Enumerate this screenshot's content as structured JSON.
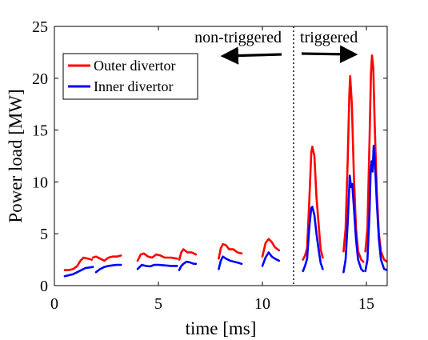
{
  "chart_data": {
    "type": "line",
    "xlabel": "time [ms]",
    "ylabel": "Power load [MW]",
    "xlim": [
      0,
      16
    ],
    "ylim": [
      0,
      25
    ],
    "xticks": [
      0,
      5,
      10,
      15
    ],
    "yticks": [
      0,
      5,
      10,
      15,
      20,
      25
    ],
    "grid": false,
    "legend_placement": "top-left",
    "annotations": {
      "left_label": "non-triggered",
      "right_label": "triggered",
      "separator_x": 11.5
    },
    "series": [
      {
        "name": "Outer divertor",
        "color": "#ff0000",
        "segments": [
          [
            [
              0.5,
              1.5
            ],
            [
              0.7,
              1.5
            ],
            [
              0.9,
              1.6
            ],
            [
              1.1,
              1.9
            ],
            [
              1.25,
              2.4
            ],
            [
              1.4,
              2.7
            ],
            [
              1.6,
              2.6
            ],
            [
              1.8,
              2.5
            ]
          ],
          [
            [
              1.85,
              2.7
            ],
            [
              2.0,
              2.8
            ],
            [
              2.2,
              2.6
            ],
            [
              2.4,
              2.4
            ],
            [
              2.6,
              2.7
            ],
            [
              2.8,
              2.8
            ],
            [
              3.0,
              2.8
            ],
            [
              3.2,
              2.9
            ]
          ],
          [
            [
              4.0,
              2.4
            ],
            [
              4.15,
              3.0
            ],
            [
              4.3,
              3.1
            ],
            [
              4.5,
              2.8
            ],
            [
              4.7,
              2.7
            ],
            [
              4.9,
              3.0
            ],
            [
              5.1,
              2.9
            ],
            [
              5.3,
              2.7
            ],
            [
              5.6,
              2.7
            ],
            [
              5.9,
              2.6
            ]
          ],
          [
            [
              6.0,
              2.5
            ],
            [
              6.1,
              3.2
            ],
            [
              6.2,
              3.5
            ],
            [
              6.4,
              3.2
            ],
            [
              6.6,
              3.2
            ],
            [
              6.8,
              3.0
            ]
          ],
          [
            [
              7.9,
              2.6
            ],
            [
              8.0,
              3.6
            ],
            [
              8.1,
              4.0
            ],
            [
              8.25,
              3.9
            ],
            [
              8.4,
              3.5
            ],
            [
              8.6,
              3.5
            ],
            [
              8.8,
              3.2
            ],
            [
              9.0,
              3.1
            ]
          ],
          [
            [
              10.0,
              2.8
            ],
            [
              10.15,
              4.1
            ],
            [
              10.3,
              4.5
            ],
            [
              10.45,
              4.2
            ],
            [
              10.6,
              3.7
            ],
            [
              10.8,
              3.4
            ]
          ],
          [
            [
              11.95,
              2.5
            ],
            [
              12.05,
              2.9
            ],
            [
              12.15,
              3.6
            ],
            [
              12.25,
              8.0
            ],
            [
              12.35,
              12.8
            ],
            [
              12.4,
              13.4
            ],
            [
              12.5,
              12.5
            ],
            [
              12.6,
              8.5
            ],
            [
              12.7,
              6.0
            ],
            [
              12.8,
              3.5
            ],
            [
              12.9,
              2.7
            ]
          ],
          [
            [
              13.9,
              3.3
            ],
            [
              14.0,
              5.5
            ],
            [
              14.1,
              12.0
            ],
            [
              14.18,
              18.5
            ],
            [
              14.22,
              20.2
            ],
            [
              14.3,
              17.5
            ],
            [
              14.4,
              10.5
            ],
            [
              14.5,
              5.5
            ],
            [
              14.6,
              3.3
            ],
            [
              14.75,
              2.5
            ],
            [
              14.85,
              2.3
            ]
          ],
          [
            [
              14.95,
              3.3
            ],
            [
              15.05,
              5.5
            ],
            [
              15.15,
              14.0
            ],
            [
              15.22,
              20.5
            ],
            [
              15.27,
              22.2
            ],
            [
              15.33,
              21.0
            ],
            [
              15.4,
              15.5
            ],
            [
              15.5,
              9.0
            ],
            [
              15.6,
              5.0
            ],
            [
              15.7,
              3.3
            ],
            [
              15.85,
              2.5
            ],
            [
              16.0,
              2.3
            ]
          ]
        ]
      },
      {
        "name": "Inner divertor",
        "color": "#0000ff",
        "segments": [
          [
            [
              0.5,
              0.9
            ],
            [
              0.7,
              1.0
            ],
            [
              0.9,
              1.1
            ],
            [
              1.1,
              1.3
            ],
            [
              1.3,
              1.5
            ],
            [
              1.5,
              1.7
            ],
            [
              1.7,
              1.75
            ],
            [
              1.85,
              1.8
            ]
          ],
          [
            [
              2.0,
              1.3
            ],
            [
              2.2,
              1.6
            ],
            [
              2.4,
              1.8
            ],
            [
              2.6,
              1.9
            ],
            [
              2.8,
              1.95
            ],
            [
              3.0,
              2.0
            ],
            [
              3.2,
              2.0
            ]
          ],
          [
            [
              4.0,
              1.6
            ],
            [
              4.2,
              2.0
            ],
            [
              4.4,
              1.9
            ],
            [
              4.6,
              1.85
            ],
            [
              4.8,
              2.0
            ],
            [
              5.0,
              2.0
            ],
            [
              5.3,
              1.95
            ],
            [
              5.6,
              1.9
            ],
            [
              5.9,
              1.9
            ]
          ],
          [
            [
              6.0,
              1.5
            ],
            [
              6.1,
              1.9
            ],
            [
              6.2,
              2.1
            ],
            [
              6.35,
              2.3
            ],
            [
              6.5,
              2.25
            ],
            [
              6.7,
              2.1
            ],
            [
              6.8,
              2.1
            ]
          ],
          [
            [
              7.9,
              1.6
            ],
            [
              8.0,
              2.4
            ],
            [
              8.1,
              2.8
            ],
            [
              8.25,
              2.6
            ],
            [
              8.45,
              2.4
            ],
            [
              8.65,
              2.3
            ],
            [
              8.85,
              2.2
            ],
            [
              9.0,
              2.1
            ]
          ],
          [
            [
              10.0,
              1.9
            ],
            [
              10.15,
              2.7
            ],
            [
              10.3,
              3.2
            ],
            [
              10.45,
              2.8
            ],
            [
              10.6,
              2.6
            ],
            [
              10.8,
              2.4
            ]
          ],
          [
            [
              11.95,
              1.4
            ],
            [
              12.05,
              1.9
            ],
            [
              12.15,
              2.6
            ],
            [
              12.25,
              5.5
            ],
            [
              12.35,
              7.5
            ],
            [
              12.4,
              7.6
            ],
            [
              12.5,
              6.8
            ],
            [
              12.6,
              5.0
            ],
            [
              12.7,
              3.5
            ],
            [
              12.8,
              2.2
            ],
            [
              12.9,
              1.6
            ]
          ],
          [
            [
              13.9,
              1.3
            ],
            [
              14.0,
              2.5
            ],
            [
              14.1,
              6.0
            ],
            [
              14.2,
              10.6
            ],
            [
              14.26,
              9.5
            ],
            [
              14.32,
              9.8
            ],
            [
              14.4,
              7.5
            ],
            [
              14.5,
              4.5
            ],
            [
              14.6,
              2.5
            ],
            [
              14.75,
              1.6
            ],
            [
              14.85,
              1.4
            ]
          ],
          [
            [
              14.95,
              1.4
            ],
            [
              15.05,
              2.5
            ],
            [
              15.15,
              7.0
            ],
            [
              15.2,
              10.8
            ],
            [
              15.25,
              12.0
            ],
            [
              15.3,
              11.0
            ],
            [
              15.35,
              13.5
            ],
            [
              15.42,
              11.5
            ],
            [
              15.5,
              8.0
            ],
            [
              15.6,
              4.5
            ],
            [
              15.7,
              2.5
            ],
            [
              15.85,
              1.6
            ],
            [
              16.0,
              1.5
            ]
          ]
        ]
      }
    ]
  }
}
